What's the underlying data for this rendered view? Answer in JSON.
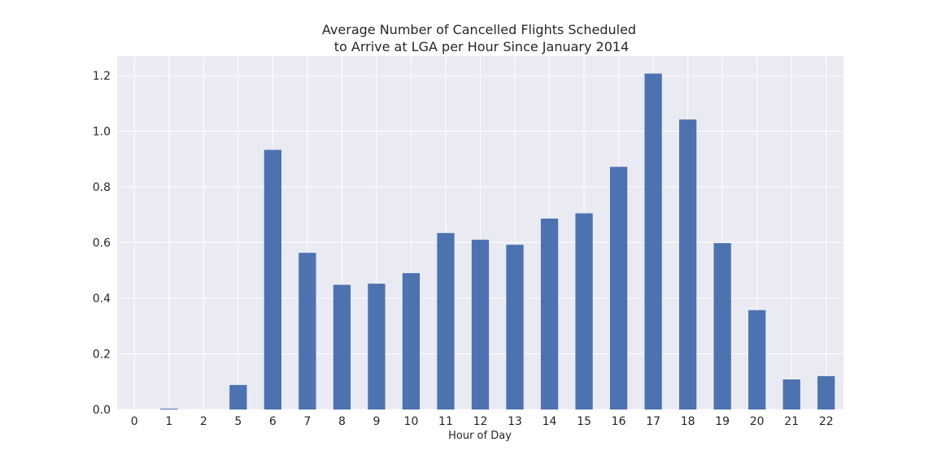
{
  "chart_data": {
    "type": "bar",
    "title_lines": [
      "Average Number of Cancelled Flights Scheduled",
      "to Arrive at LGA per Hour Since January 2014"
    ],
    "xlabel": "Hour of Day",
    "ylabel": "",
    "categories": [
      "0",
      "1",
      "2",
      "5",
      "6",
      "7",
      "8",
      "9",
      "10",
      "11",
      "12",
      "13",
      "14",
      "15",
      "16",
      "17",
      "18",
      "19",
      "20",
      "21",
      "22"
    ],
    "values": [
      0.0,
      0.003,
      0.0,
      0.088,
      0.933,
      0.563,
      0.448,
      0.452,
      0.49,
      0.634,
      0.61,
      0.592,
      0.686,
      0.705,
      0.872,
      1.207,
      1.042,
      0.598,
      0.357,
      0.108,
      0.12
    ],
    "yticks": [
      "0.0",
      "0.2",
      "0.4",
      "0.6",
      "0.8",
      "1.0",
      "1.2"
    ],
    "ylim": [
      0,
      1.27
    ],
    "grid": true,
    "bar_color": "#4c72b0",
    "plot_background": "#eaeaf2",
    "grid_color": "#ffffff"
  }
}
